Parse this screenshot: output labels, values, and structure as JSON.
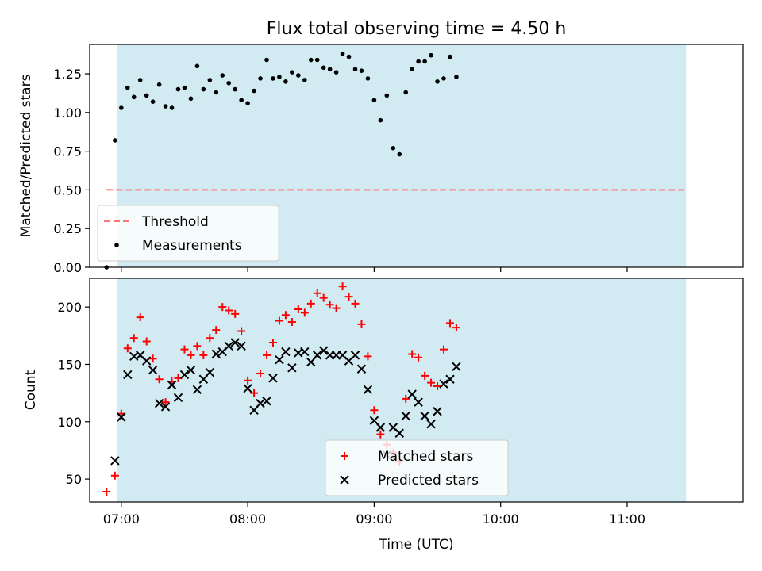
{
  "title": "Flux total observing time = 4.50 h",
  "x_axis": {
    "label": "Time (UTC)",
    "tick_labels": [
      "07:00",
      "08:00",
      "09:00",
      "10:00",
      "11:00"
    ],
    "tick_values": [
      "07:00",
      "08:00",
      "09:00",
      "10:00",
      "11:00"
    ],
    "range": [
      "06:45",
      "11:55"
    ]
  },
  "shaded_interval": {
    "start": "06:58",
    "end": "11:28",
    "color": "#add8e6"
  },
  "chart_data": [
    {
      "type": "scatter",
      "ylabel": "Matched/Predicted stars",
      "ylim": [
        0,
        1.44
      ],
      "yticks": [
        "0.00",
        "0.25",
        "0.50",
        "0.75",
        "1.00",
        "1.25"
      ],
      "grid": false,
      "legend_position": "lower-left",
      "threshold": {
        "name": "Threshold",
        "value": 0.5,
        "from": "06:53",
        "to": "11:28",
        "color": "#ff7777",
        "style": "dashed"
      },
      "series": [
        {
          "name": "Measurements",
          "color": "#000000",
          "marker": "dot",
          "points": [
            [
              "06:53",
              0.0
            ],
            [
              "06:57",
              0.82
            ],
            [
              "07:00",
              1.03
            ],
            [
              "07:03",
              1.16
            ],
            [
              "07:06",
              1.1
            ],
            [
              "07:09",
              1.21
            ],
            [
              "07:12",
              1.11
            ],
            [
              "07:15",
              1.07
            ],
            [
              "07:18",
              1.18
            ],
            [
              "07:21",
              1.04
            ],
            [
              "07:24",
              1.03
            ],
            [
              "07:27",
              1.15
            ],
            [
              "07:30",
              1.16
            ],
            [
              "07:33",
              1.09
            ],
            [
              "07:36",
              1.3
            ],
            [
              "07:39",
              1.15
            ],
            [
              "07:42",
              1.21
            ],
            [
              "07:45",
              1.13
            ],
            [
              "07:48",
              1.24
            ],
            [
              "07:51",
              1.19
            ],
            [
              "07:54",
              1.15
            ],
            [
              "07:57",
              1.08
            ],
            [
              "08:00",
              1.06
            ],
            [
              "08:03",
              1.14
            ],
            [
              "08:06",
              1.22
            ],
            [
              "08:09",
              1.34
            ],
            [
              "08:12",
              1.22
            ],
            [
              "08:15",
              1.23
            ],
            [
              "08:18",
              1.2
            ],
            [
              "08:21",
              1.26
            ],
            [
              "08:24",
              1.24
            ],
            [
              "08:27",
              1.21
            ],
            [
              "08:30",
              1.34
            ],
            [
              "08:33",
              1.34
            ],
            [
              "08:36",
              1.29
            ],
            [
              "08:39",
              1.28
            ],
            [
              "08:42",
              1.26
            ],
            [
              "08:45",
              1.38
            ],
            [
              "08:48",
              1.36
            ],
            [
              "08:51",
              1.28
            ],
            [
              "08:54",
              1.27
            ],
            [
              "08:57",
              1.22
            ],
            [
              "09:00",
              1.08
            ],
            [
              "09:03",
              0.95
            ],
            [
              "09:06",
              1.11
            ],
            [
              "09:09",
              0.77
            ],
            [
              "09:12",
              0.73
            ],
            [
              "09:15",
              1.13
            ],
            [
              "09:18",
              1.28
            ],
            [
              "09:21",
              1.33
            ],
            [
              "09:24",
              1.33
            ],
            [
              "09:27",
              1.37
            ],
            [
              "09:30",
              1.2
            ],
            [
              "09:33",
              1.22
            ],
            [
              "09:36",
              1.36
            ],
            [
              "09:39",
              1.23
            ]
          ]
        }
      ]
    },
    {
      "type": "scatter",
      "ylabel": "Count",
      "ylim": [
        30,
        225
      ],
      "yticks": [
        "50",
        "100",
        "150",
        "200"
      ],
      "grid": false,
      "legend_position": "lower-center",
      "series": [
        {
          "name": "Matched stars",
          "color": "#ff0000",
          "marker": "plus",
          "points": [
            [
              "06:53",
              39
            ],
            [
              "06:57",
              53
            ],
            [
              "07:00",
              107
            ],
            [
              "07:03",
              164
            ],
            [
              "07:06",
              173
            ],
            [
              "07:09",
              191
            ],
            [
              "07:12",
              170
            ],
            [
              "07:15",
              155
            ],
            [
              "07:18",
              137
            ],
            [
              "07:21",
              117
            ],
            [
              "07:24",
              135
            ],
            [
              "07:27",
              138
            ],
            [
              "07:30",
              163
            ],
            [
              "07:33",
              158
            ],
            [
              "07:36",
              166
            ],
            [
              "07:39",
              158
            ],
            [
              "07:42",
              173
            ],
            [
              "07:45",
              180
            ],
            [
              "07:48",
              200
            ],
            [
              "07:51",
              197
            ],
            [
              "07:54",
              194
            ],
            [
              "07:57",
              179
            ],
            [
              "08:00",
              136
            ],
            [
              "08:03",
              125
            ],
            [
              "08:06",
              142
            ],
            [
              "08:09",
              158
            ],
            [
              "08:12",
              169
            ],
            [
              "08:15",
              188
            ],
            [
              "08:18",
              193
            ],
            [
              "08:21",
              187
            ],
            [
              "08:24",
              198
            ],
            [
              "08:27",
              195
            ],
            [
              "08:30",
              203
            ],
            [
              "08:33",
              212
            ],
            [
              "08:36",
              208
            ],
            [
              "08:39",
              202
            ],
            [
              "08:42",
              199
            ],
            [
              "08:45",
              218
            ],
            [
              "08:48",
              209
            ],
            [
              "08:51",
              203
            ],
            [
              "08:54",
              185
            ],
            [
              "08:57",
              157
            ],
            [
              "09:00",
              110
            ],
            [
              "09:03",
              89
            ],
            [
              "09:06",
              80
            ],
            [
              "09:09",
              73
            ],
            [
              "09:12",
              65
            ],
            [
              "09:15",
              120
            ],
            [
              "09:18",
              159
            ],
            [
              "09:21",
              156
            ],
            [
              "09:24",
              140
            ],
            [
              "09:27",
              134
            ],
            [
              "09:30",
              131
            ],
            [
              "09:33",
              163
            ],
            [
              "09:36",
              186
            ],
            [
              "09:39",
              182
            ]
          ]
        },
        {
          "name": "Predicted stars",
          "color": "#000000",
          "marker": "cross",
          "points": [
            [
              "06:57",
              66
            ],
            [
              "07:00",
              104
            ],
            [
              "07:03",
              141
            ],
            [
              "07:06",
              157
            ],
            [
              "07:09",
              158
            ],
            [
              "07:12",
              153
            ],
            [
              "07:15",
              145
            ],
            [
              "07:18",
              116
            ],
            [
              "07:21",
              113
            ],
            [
              "07:24",
              132
            ],
            [
              "07:27",
              121
            ],
            [
              "07:30",
              141
            ],
            [
              "07:33",
              145
            ],
            [
              "07:36",
              128
            ],
            [
              "07:39",
              137
            ],
            [
              "07:42",
              143
            ],
            [
              "07:45",
              159
            ],
            [
              "07:48",
              161
            ],
            [
              "07:51",
              166
            ],
            [
              "07:54",
              169
            ],
            [
              "07:57",
              166
            ],
            [
              "08:00",
              129
            ],
            [
              "08:03",
              110
            ],
            [
              "08:06",
              116
            ],
            [
              "08:09",
              118
            ],
            [
              "08:12",
              138
            ],
            [
              "08:15",
              154
            ],
            [
              "08:18",
              161
            ],
            [
              "08:21",
              147
            ],
            [
              "08:24",
              160
            ],
            [
              "08:27",
              161
            ],
            [
              "08:30",
              152
            ],
            [
              "08:33",
              158
            ],
            [
              "08:36",
              162
            ],
            [
              "08:39",
              158
            ],
            [
              "08:42",
              158
            ],
            [
              "08:45",
              158
            ],
            [
              "08:48",
              153
            ],
            [
              "08:51",
              158
            ],
            [
              "08:54",
              146
            ],
            [
              "08:57",
              128
            ],
            [
              "09:00",
              101
            ],
            [
              "09:03",
              95
            ],
            [
              "09:06",
              71
            ],
            [
              "09:09",
              95
            ],
            [
              "09:12",
              90
            ],
            [
              "09:15",
              105
            ],
            [
              "09:18",
              124
            ],
            [
              "09:21",
              117
            ],
            [
              "09:24",
              105
            ],
            [
              "09:27",
              98
            ],
            [
              "09:30",
              109
            ],
            [
              "09:33",
              133
            ],
            [
              "09:36",
              137
            ],
            [
              "09:39",
              148
            ]
          ]
        }
      ]
    }
  ]
}
